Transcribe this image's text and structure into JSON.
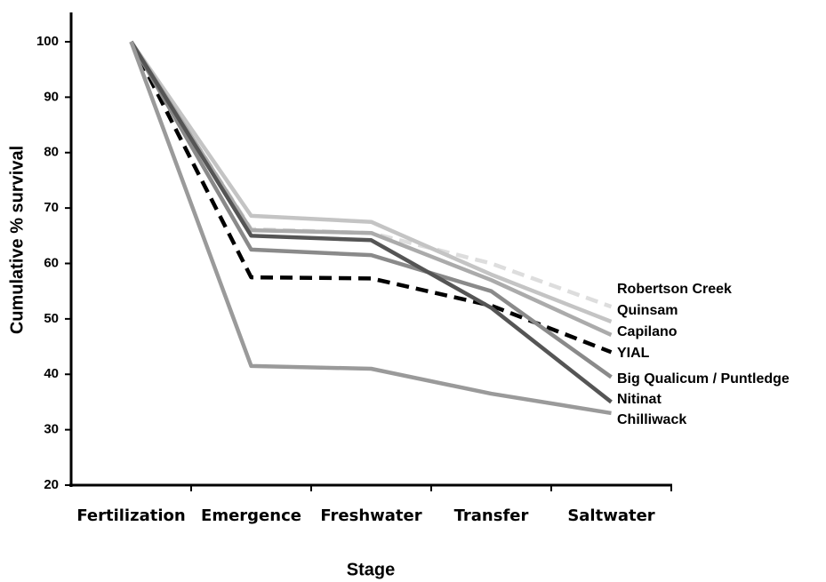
{
  "chart_data": {
    "type": "line",
    "x_label": "Stage",
    "y_label": "Cumulative % survival",
    "categories": [
      "Fertilization",
      "Emergence",
      "Freshwater",
      "Transfer",
      "Saltwater"
    ],
    "ylim": [
      20,
      100
    ],
    "yticks": [
      20,
      30,
      40,
      50,
      60,
      70,
      80,
      90,
      100
    ],
    "series": [
      {
        "name": "Robertson Creek",
        "color": "#dddddd",
        "dashed": true,
        "values": [
          100,
          66.2,
          65.5,
          60,
          52.2
        ]
      },
      {
        "name": "Quinsam",
        "color": "#c4c4c4",
        "dashed": false,
        "values": [
          100,
          68.6,
          67.5,
          58,
          49.5
        ]
      },
      {
        "name": "Capilano",
        "color": "#ababab",
        "dashed": false,
        "values": [
          100,
          66,
          65.5,
          57,
          47.1
        ]
      },
      {
        "name": "YIAL",
        "color": "#000000",
        "dashed": true,
        "values": [
          100,
          57.5,
          57.3,
          52.4,
          44
        ]
      },
      {
        "name": "Big Qualicum / Puntledge",
        "color": "#8a8a8a",
        "dashed": false,
        "values": [
          100,
          62.5,
          61.5,
          55,
          39.5
        ]
      },
      {
        "name": "Nitinat",
        "color": "#555555",
        "dashed": false,
        "values": [
          100,
          65,
          64.2,
          52,
          35
        ]
      },
      {
        "name": "Chilliwack",
        "color": "#9a9a9a",
        "dashed": false,
        "values": [
          100,
          41.5,
          41,
          36.5,
          33
        ]
      }
    ]
  }
}
